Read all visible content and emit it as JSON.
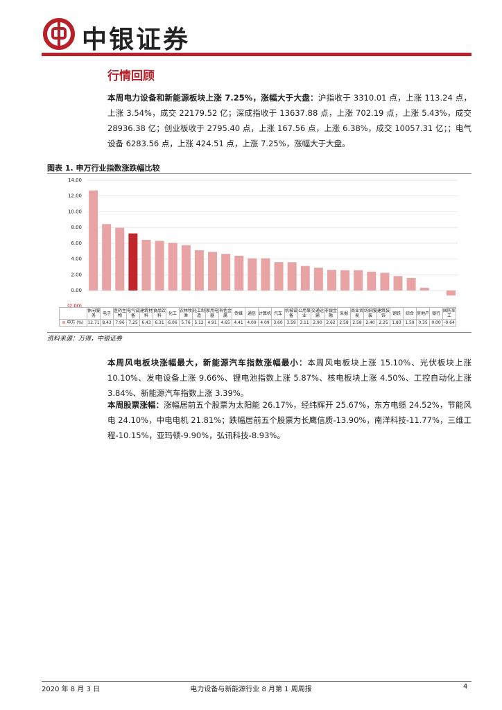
{
  "header": {
    "brand": "中银证券"
  },
  "section_title": "行情回顾",
  "paragraphs": [
    {
      "lead": "本周电力设备和新能源板块上涨 7.25%，涨幅大于大盘：",
      "text": "沪指收于 3310.01 点，上涨 113.24 点，上涨 3.54%，成交 22179.52 亿；深成指收于 13637.88 点，上涨 702.19 点，上涨 5.43%，成交 28936.38 亿；创业板收于 2795.40 点，上涨 167.56 点，上涨 6.38%，成交 10057.31 亿；；电气设备 6283.56 点，上涨 424.51 点，上涨 7.25%，涨幅大于大盘。"
    },
    {
      "lead": "本周风电板块涨幅最大，新能源汽车指数涨幅最小：",
      "text": "本周风电板块上涨 15.10%、光伏板块上涨 10.10%、发电设备上涨 9.66%、锂电池指数上涨 5.87%、核电板块上涨 4.50%、工控自动化上涨 3.84%、新能源汽车指数上涨 3.39%。"
    },
    {
      "lead": "本周股票涨幅：",
      "text": "涨幅居前五个股票为太阳能 26.17%，经纬辉开 25.67%，东方电缆 24.52%，节能风电 24.10%，中电电机 21.81%；跌幅居前五个股票为长鹰信质-13.90%，南洋科技-11.77%，三维工程-10.15%，亚玛顿-9.90%，弘讯科技-8.93%。"
    }
  ],
  "figure_caption": "图表 1. 申万行业指数涨跌幅比较",
  "chart_data": {
    "type": "bar",
    "categories": [
      "休闲服务",
      "电子",
      "医药生物",
      "电气设备",
      "建筑材料",
      "食品饮料",
      "化工",
      "农林牧渔",
      "轻工制造",
      "家用电器",
      "有色金属",
      "传媒",
      "通信",
      "计算机",
      "汽车",
      "机械设备",
      "公用事业",
      "交通运输",
      "非银金融",
      "采掘",
      "商业贸易",
      "纺织服装",
      "建筑装饰",
      "钢铁",
      "综合",
      "房地产",
      "银行",
      "国防军工"
    ],
    "series": [
      {
        "name": "申万 (%)",
        "color": "#e8a4a4",
        "values": [
          12.71,
          8.43,
          7.96,
          7.25,
          6.43,
          6.31,
          6.06,
          5.76,
          5.12,
          4.91,
          4.65,
          4.41,
          4.09,
          4.09,
          3.6,
          3.59,
          3.11,
          2.9,
          2.62,
          2.58,
          2.58,
          2.4,
          2.25,
          1.83,
          1.59,
          0.35,
          0.0,
          -0.64
        ],
        "value_labels": [
          "12.71",
          "8.43",
          "7.96",
          "7.25",
          "6.43",
          "6.31",
          "6.06",
          "5.76",
          "5.12",
          "4.91",
          "4.65",
          "4.41",
          "4.09",
          "4.09",
          "3.60",
          "3.59",
          "3.11",
          "2.90",
          "2.62",
          "2.58",
          "2.58",
          "2.40",
          "2.25",
          "1.83",
          "1.59",
          "0.35",
          "0.00",
          "-0.64"
        ],
        "colors": [
          "#e8a4a4",
          "#e8a4a4",
          "#e8a4a4",
          "#c0272d",
          "#e8a4a4",
          "#e8a4a4",
          "#e8a4a4",
          "#e8a4a4",
          "#e8a4a4",
          "#e8a4a4",
          "#e8a4a4",
          "#e8a4a4",
          "#e8a4a4",
          "#e8a4a4",
          "#e8a4a4",
          "#e8a4a4",
          "#e8a4a4",
          "#e8a4a4",
          "#e8a4a4",
          "#e8a4a4",
          "#e8a4a4",
          "#e8a4a4",
          "#e8a4a4",
          "#e8a4a4",
          "#e8a4a4",
          "#e8a4a4",
          "#e8a4a4",
          "#e8a4a4"
        ]
      }
    ],
    "ylim": [
      -2,
      14
    ],
    "yticks": [
      {
        "value": -2,
        "label": "(2.00)"
      },
      {
        "value": 0,
        "label": "0.00"
      },
      {
        "value": 2,
        "label": "2.00"
      },
      {
        "value": 4,
        "label": "4.00"
      },
      {
        "value": 6,
        "label": "6.00"
      },
      {
        "value": 8,
        "label": "8.00"
      },
      {
        "value": 10,
        "label": "10.00"
      },
      {
        "value": 12,
        "label": "12.00"
      },
      {
        "value": 14,
        "label": "14.00"
      }
    ],
    "grid": true
  },
  "source": "资料来源：万得，中银证券",
  "footer": {
    "date": "2020 年 8 月 3 日",
    "title": "电力设备与新能源行业 8 月第 1 周周报",
    "page": "4"
  }
}
